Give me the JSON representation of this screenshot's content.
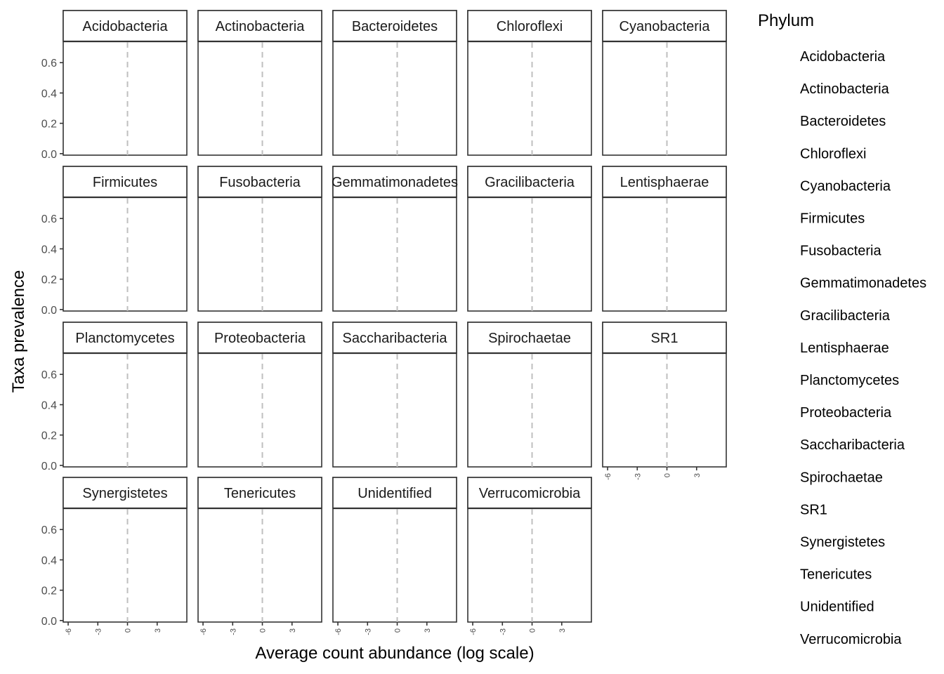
{
  "chart_data": {
    "type": "scatter",
    "xlabel": "Average count abundance (log scale)",
    "ylabel": "Taxa prevalence",
    "x_ticks": [
      "-6",
      "-3",
      "0",
      "3"
    ],
    "y_ticks": [
      "0.0",
      "0.2",
      "0.4",
      "0.6"
    ],
    "xlim": [
      -6.5,
      6
    ],
    "ylim": [
      -0.01,
      0.74
    ],
    "reference_line_x": 0,
    "grid": false,
    "facets": [
      "Acidobacteria",
      "Actinobacteria",
      "Bacteroidetes",
      "Chloroflexi",
      "Cyanobacteria",
      "Firmicutes",
      "Fusobacteria",
      "Gemmatimonadetes",
      "Gracilibacteria",
      "Lentisphaerae",
      "Planctomycetes",
      "Proteobacteria",
      "Saccharibacteria",
      "Spirochaetae",
      "SR1",
      "Synergistetes",
      "Tenericutes",
      "Unidentified",
      "Verrucomicrobia"
    ],
    "legend": {
      "title": "Phylum",
      "placement": "right",
      "entries": [
        "Acidobacteria",
        "Actinobacteria",
        "Bacteroidetes",
        "Chloroflexi",
        "Cyanobacteria",
        "Firmicutes",
        "Fusobacteria",
        "Gemmatimonadetes",
        "Gracilibacteria",
        "Lentisphaerae",
        "Planctomycetes",
        "Proteobacteria",
        "Saccharibacteria",
        "Spirochaetae",
        "SR1",
        "Synergistetes",
        "Tenericutes",
        "Unidentified",
        "Verrucomicrobia"
      ]
    },
    "series": []
  },
  "colors": {
    "panel_border": "#333333",
    "strip_fill": "#ffffff",
    "reference_line": "#bfbfbf",
    "tick_text": "#4d4d4d"
  }
}
